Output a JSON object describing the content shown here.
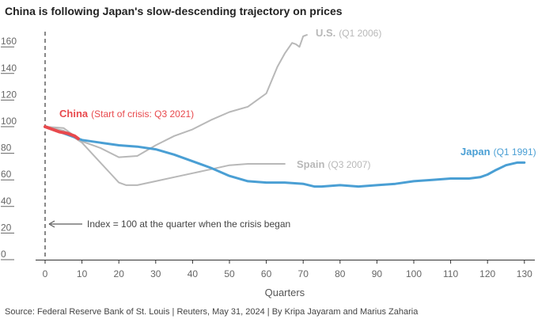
{
  "title": "China is following Japan's slow-descending trajectory on prices",
  "source": "Source: Federal Reserve Bank of St. Louis | Reuters, May 31, 2024 | By Kripa Jayaram and Marius Zaharia",
  "colors": {
    "japan": "#4a9fd4",
    "china": "#e8494d",
    "us": "#b8b8b8",
    "spain": "#b8b8b8",
    "crisis_line": "#888888",
    "axis": "#333333"
  },
  "chart_data": {
    "type": "line",
    "title": "China is following Japan's slow-descending trajectory on prices",
    "xlabel": "Quarters",
    "ylabel": "",
    "xlim": [
      0,
      131
    ],
    "ylim": [
      0,
      170
    ],
    "x_ticks": [
      0,
      10,
      20,
      30,
      40,
      50,
      60,
      70,
      80,
      90,
      100,
      110,
      120,
      130
    ],
    "y_ticks": [
      0,
      20,
      40,
      60,
      80,
      100,
      120,
      140,
      160
    ],
    "annotation": "Index = 100 at the quarter when the crisis began",
    "series": [
      {
        "name": "Japan",
        "subtitle": "(Q1 1991)",
        "color_key": "japan",
        "x": [
          0,
          5,
          10,
          15,
          20,
          25,
          30,
          35,
          40,
          45,
          50,
          55,
          60,
          65,
          70,
          73,
          75,
          80,
          85,
          90,
          95,
          100,
          105,
          110,
          115,
          118,
          120,
          122,
          125,
          128,
          130
        ],
        "y": [
          100,
          95,
          90,
          88,
          86,
          85,
          83,
          79,
          74,
          69,
          63,
          59,
          58,
          58,
          57,
          55,
          55,
          56,
          55,
          56,
          57,
          59,
          60,
          61,
          61,
          62,
          64,
          67,
          71,
          73,
          73
        ]
      },
      {
        "name": "China",
        "subtitle": "(Start of crisis: Q3 2021)",
        "color_key": "china",
        "x": [
          0,
          2,
          4,
          6,
          8,
          9
        ],
        "y": [
          100,
          98,
          96,
          95,
          93,
          91
        ]
      },
      {
        "name": "U.S.",
        "subtitle": "(Q1 2006)",
        "color_key": "us",
        "x": [
          0,
          5,
          10,
          15,
          20,
          25,
          30,
          35,
          40,
          45,
          50,
          55,
          60,
          63,
          65,
          67,
          68,
          69,
          70,
          71
        ],
        "y": [
          100,
          99,
          89,
          84,
          77,
          78,
          86,
          93,
          98,
          105,
          111,
          115,
          125,
          145,
          155,
          163,
          162,
          160,
          168,
          169
        ]
      },
      {
        "name": "Spain",
        "subtitle": "(Q3 2007)",
        "color_key": "spain",
        "x": [
          0,
          5,
          10,
          15,
          18,
          20,
          22,
          25,
          30,
          35,
          40,
          45,
          50,
          55,
          60,
          65
        ],
        "y": [
          100,
          97,
          88,
          73,
          64,
          58,
          56,
          56,
          59,
          62,
          65,
          68,
          71,
          72,
          72,
          72
        ]
      }
    ]
  }
}
